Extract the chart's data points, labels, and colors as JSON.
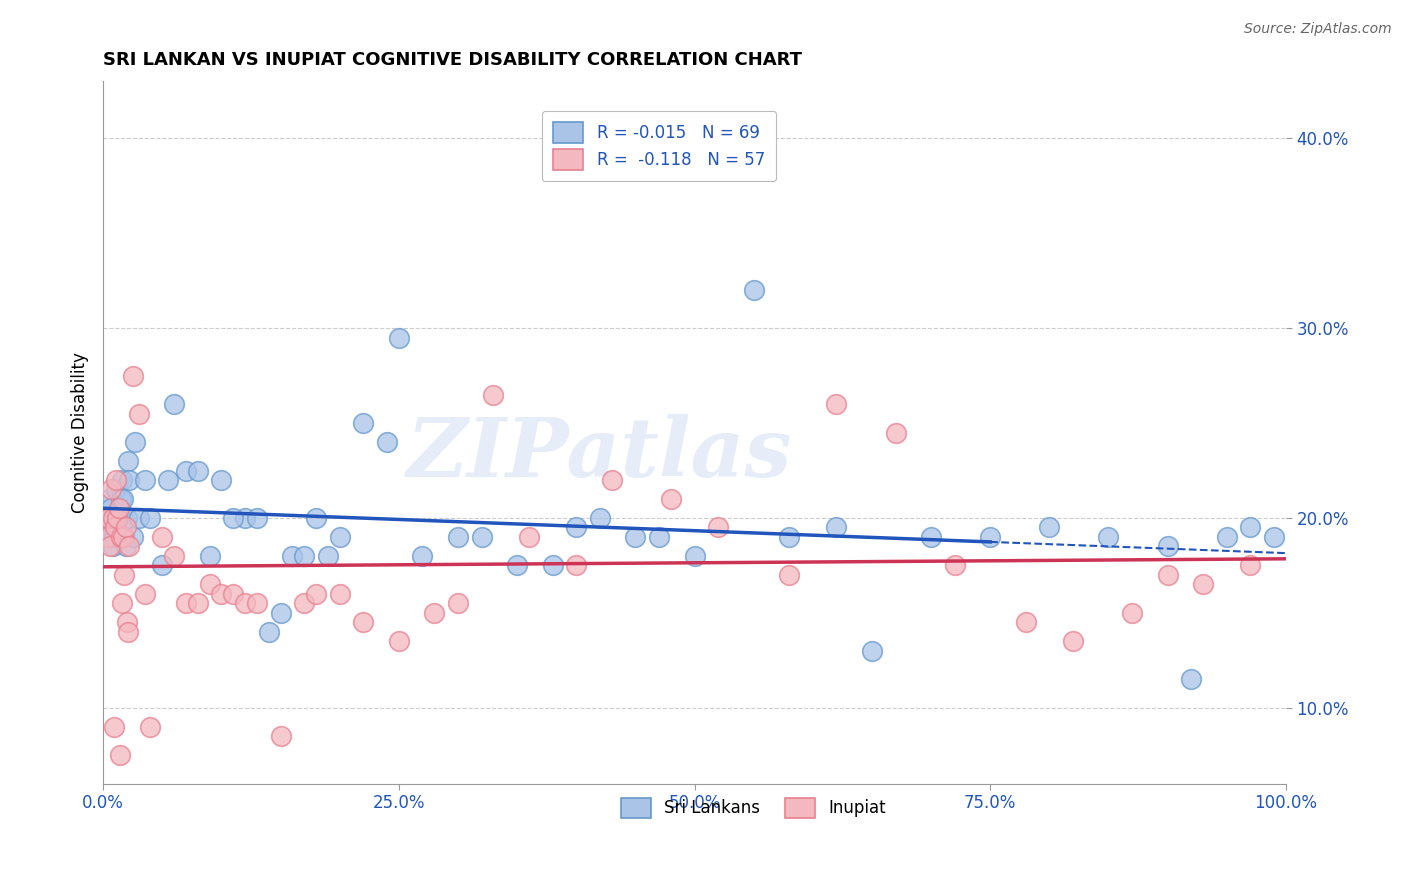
{
  "title": "SRI LANKAN VS INUPIAT COGNITIVE DISABILITY CORRELATION CHART",
  "source_text": "Source: ZipAtlas.com",
  "ylabel": "Cognitive Disability",
  "xlim": [
    0.0,
    100.0
  ],
  "ylim": [
    6.0,
    43.0
  ],
  "yticks": [
    10.0,
    20.0,
    30.0,
    40.0
  ],
  "xticks": [
    0.0,
    25.0,
    50.0,
    75.0,
    100.0
  ],
  "xtick_labels": [
    "0.0%",
    "25.0%",
    "50.0%",
    "75.0%",
    "100.0%"
  ],
  "ytick_labels": [
    "10.0%",
    "20.0%",
    "30.0%",
    "40.0%"
  ],
  "blue_face": "#aac4e8",
  "blue_edge": "#6699cc",
  "pink_face": "#f4b8c0",
  "pink_edge": "#e88090",
  "blue_line_color": "#2255bb",
  "pink_line_color": "#cc3355",
  "legend_label_blue": "R = -0.015   N = 69",
  "legend_label_pink": "R =  -0.118   N = 57",
  "legend_label_sri": "Sri Lankans",
  "legend_label_inu": "Inupiat",
  "watermark_text": "ZIPatlas",
  "blue_line_solid_end": 75.0,
  "blue_x": [
    0.3,
    0.4,
    0.5,
    0.5,
    0.6,
    0.7,
    0.8,
    0.9,
    1.0,
    1.1,
    1.2,
    1.3,
    1.4,
    1.5,
    1.6,
    1.7,
    1.8,
    1.9,
    2.0,
    2.1,
    2.2,
    2.5,
    2.7,
    3.0,
    3.5,
    4.0,
    5.0,
    5.5,
    6.0,
    7.0,
    8.0,
    9.0,
    10.0,
    12.0,
    13.0,
    14.0,
    15.0,
    16.0,
    17.0,
    18.0,
    20.0,
    22.0,
    24.0,
    25.0,
    27.0,
    30.0,
    32.0,
    35.0,
    38.0,
    42.0,
    47.0,
    50.0,
    55.0,
    58.0,
    62.0,
    65.0,
    70.0,
    75.0,
    80.0,
    85.0,
    90.0,
    92.0,
    95.0,
    97.0,
    99.0,
    11.0,
    19.0,
    40.0,
    45.0
  ],
  "blue_y": [
    19.0,
    19.5,
    20.0,
    21.0,
    19.0,
    20.5,
    18.5,
    19.0,
    20.0,
    21.5,
    19.5,
    20.0,
    20.5,
    21.0,
    22.0,
    21.0,
    19.0,
    18.5,
    20.0,
    23.0,
    22.0,
    19.0,
    24.0,
    20.0,
    22.0,
    20.0,
    17.5,
    22.0,
    26.0,
    22.5,
    22.5,
    18.0,
    22.0,
    20.0,
    20.0,
    14.0,
    15.0,
    18.0,
    18.0,
    20.0,
    19.0,
    25.0,
    24.0,
    29.5,
    18.0,
    19.0,
    19.0,
    17.5,
    17.5,
    20.0,
    19.0,
    18.0,
    32.0,
    19.0,
    19.5,
    13.0,
    19.0,
    19.0,
    19.5,
    19.0,
    18.5,
    11.5,
    19.0,
    19.5,
    19.0,
    20.0,
    18.0,
    19.5,
    19.0
  ],
  "pink_x": [
    0.3,
    0.4,
    0.5,
    0.6,
    0.7,
    0.8,
    0.9,
    1.0,
    1.1,
    1.2,
    1.3,
    1.4,
    1.5,
    1.6,
    1.7,
    1.8,
    1.9,
    2.0,
    2.1,
    2.2,
    2.5,
    3.0,
    3.5,
    4.0,
    5.0,
    6.0,
    7.0,
    8.0,
    9.0,
    10.0,
    11.0,
    12.0,
    13.0,
    15.0,
    17.0,
    18.0,
    20.0,
    22.0,
    25.0,
    28.0,
    30.0,
    33.0,
    36.0,
    40.0,
    43.0,
    48.0,
    52.0,
    58.0,
    62.0,
    67.0,
    72.0,
    78.0,
    82.0,
    87.0,
    90.0,
    93.0,
    97.0
  ],
  "pink_y": [
    20.0,
    19.0,
    20.0,
    18.5,
    21.5,
    20.0,
    9.0,
    19.5,
    22.0,
    20.0,
    20.5,
    7.5,
    19.0,
    15.5,
    19.0,
    17.0,
    19.5,
    14.5,
    14.0,
    18.5,
    27.5,
    25.5,
    16.0,
    9.0,
    19.0,
    18.0,
    15.5,
    15.5,
    16.5,
    16.0,
    16.0,
    15.5,
    15.5,
    8.5,
    15.5,
    16.0,
    16.0,
    14.5,
    13.5,
    15.0,
    15.5,
    26.5,
    19.0,
    17.5,
    22.0,
    21.0,
    19.5,
    17.0,
    26.0,
    24.5,
    17.5,
    14.5,
    13.5,
    15.0,
    17.0,
    16.5,
    17.5
  ]
}
